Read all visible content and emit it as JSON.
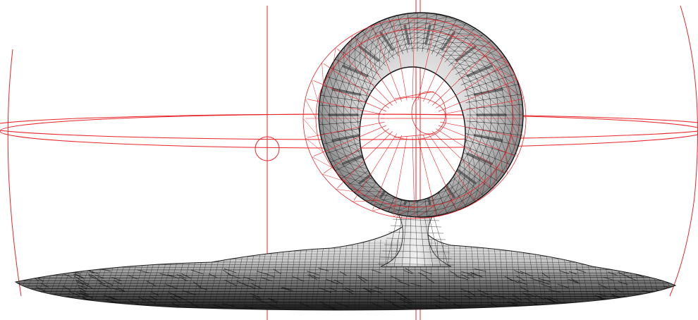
{
  "scene": {
    "background": "#ffffff",
    "guide_color": "#e8262a",
    "mesh_stroke": "#1a1a1a",
    "mesh_fill_light": "#f2f2f2",
    "mesh_fill_dark": "#6a6a6a",
    "objects": [
      "reference-sphere-guides",
      "torus-mesh",
      "torus-control-cage",
      "neck-mesh",
      "base-disk-mesh"
    ]
  }
}
